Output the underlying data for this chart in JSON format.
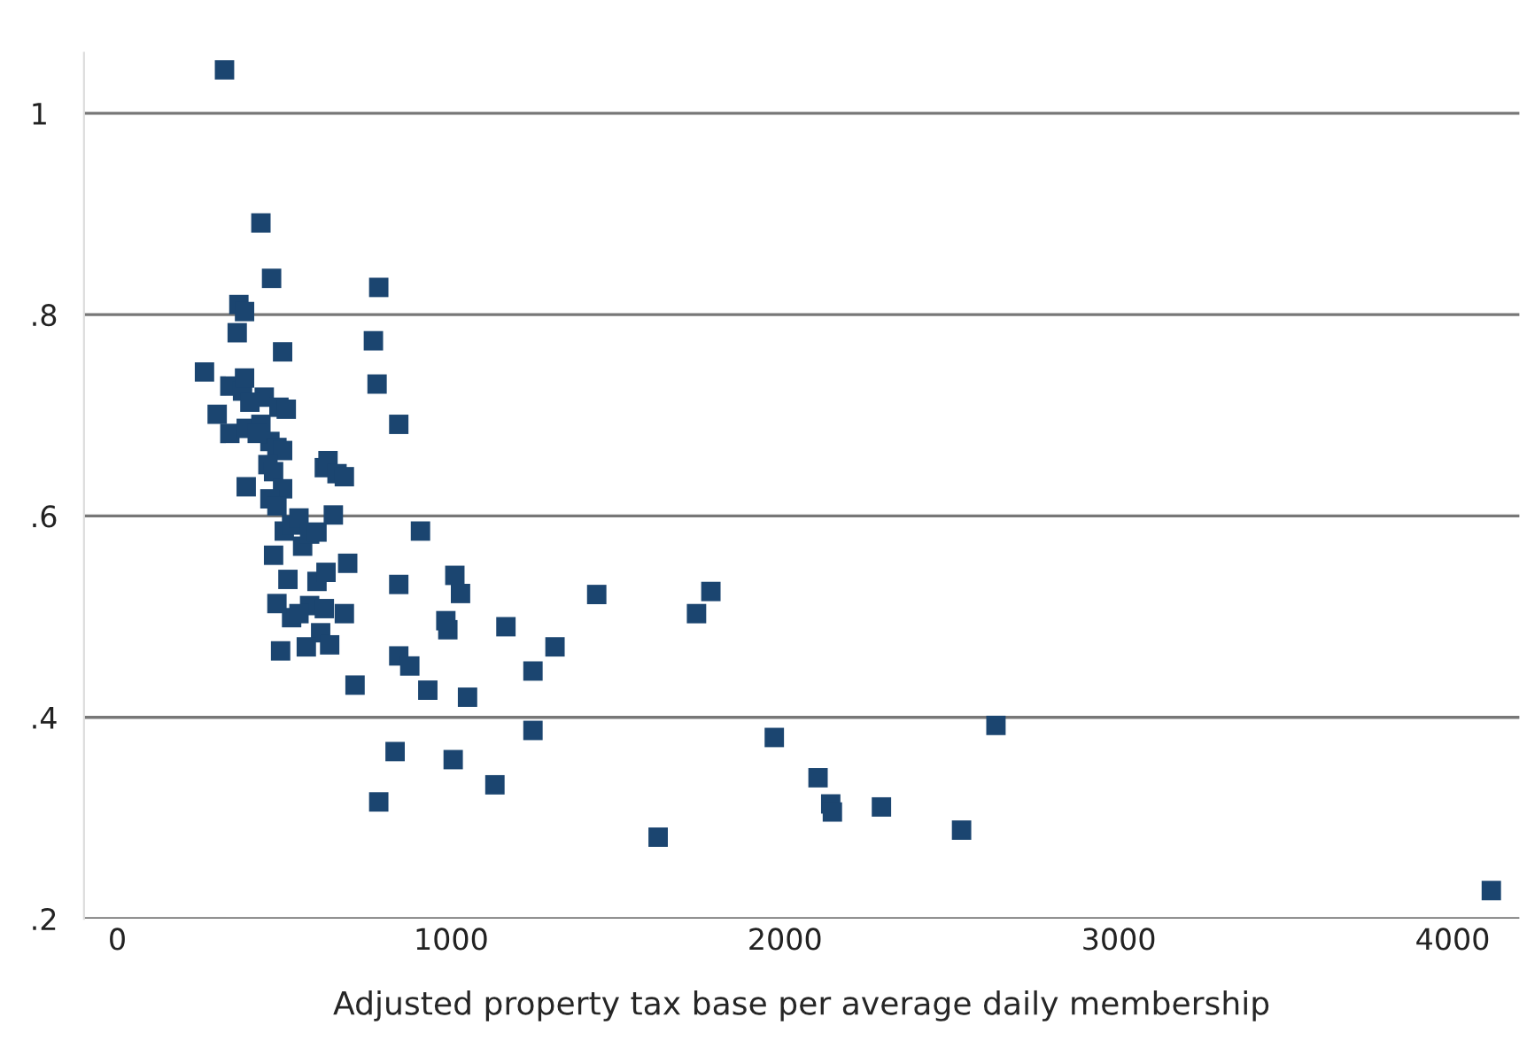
{
  "chart_data": {
    "type": "scatter",
    "xlabel": "Adjusted property tax base per average daily membership",
    "x": [
      321,
      430,
      462,
      783,
      364,
      381,
      359,
      767,
      495,
      778,
      261,
      299,
      337,
      375,
      440,
      381,
      397,
      337,
      386,
      430,
      484,
      506,
      457,
      419,
      478,
      495,
      451,
      468,
      495,
      457,
      478,
      386,
      500,
      522,
      544,
      555,
      576,
      598,
      620,
      631,
      658,
      680,
      647,
      468,
      511,
      598,
      625,
      690,
      576,
      620,
      522,
      544,
      478,
      680,
      609,
      636,
      566,
      489,
      712,
      843,
      843,
      876,
      908,
      930,
      832,
      783,
      843,
      1011,
      1028,
      984,
      990,
      1049,
      1006,
      1131,
      1164,
      1245,
      1245,
      1311,
      1436,
      1620,
      1735,
      1778,
      1968,
      2099,
      2137,
      2142,
      2289,
      2529,
      2632,
      4116
    ],
    "series": [
      {
        "color": "#1b4570",
        "values": [
          1.043,
          0.891,
          0.836,
          0.827,
          0.81,
          0.803,
          0.782,
          0.774,
          0.763,
          0.731,
          0.743,
          0.701,
          0.729,
          0.724,
          0.718,
          0.737,
          0.713,
          0.682,
          0.687,
          0.691,
          0.708,
          0.706,
          0.674,
          0.682,
          0.668,
          0.665,
          0.651,
          0.644,
          0.627,
          0.617,
          0.61,
          0.629,
          0.585,
          0.591,
          0.598,
          0.57,
          0.582,
          0.584,
          0.648,
          0.655,
          0.642,
          0.639,
          0.601,
          0.561,
          0.537,
          0.535,
          0.544,
          0.553,
          0.511,
          0.508,
          0.499,
          0.503,
          0.513,
          0.503,
          0.484,
          0.472,
          0.47,
          0.466,
          0.432,
          0.532,
          0.461,
          0.451,
          0.585,
          0.427,
          0.366,
          0.316,
          0.691,
          0.541,
          0.523,
          0.496,
          0.487,
          0.42,
          0.358,
          0.333,
          0.49,
          0.446,
          0.387,
          0.47,
          0.522,
          0.281,
          0.503,
          0.525,
          0.38,
          0.34,
          0.314,
          0.306,
          0.311,
          0.288,
          0.392,
          0.228
        ]
      }
    ],
    "xlim": [
      -100,
      4200
    ],
    "ylim": [
      0.2,
      1.06
    ],
    "xticks": [
      0,
      1000,
      2000,
      3000,
      4000
    ],
    "yticks": [
      {
        "value": 0.2,
        "label": ".2"
      },
      {
        "value": 0.4,
        "label": ".4"
      },
      {
        "value": 0.6,
        "label": ".6"
      },
      {
        "value": 0.8,
        "label": ".8"
      },
      {
        "value": 1,
        "label": "1"
      }
    ],
    "grid": "y",
    "marker": "square",
    "legend": false
  }
}
